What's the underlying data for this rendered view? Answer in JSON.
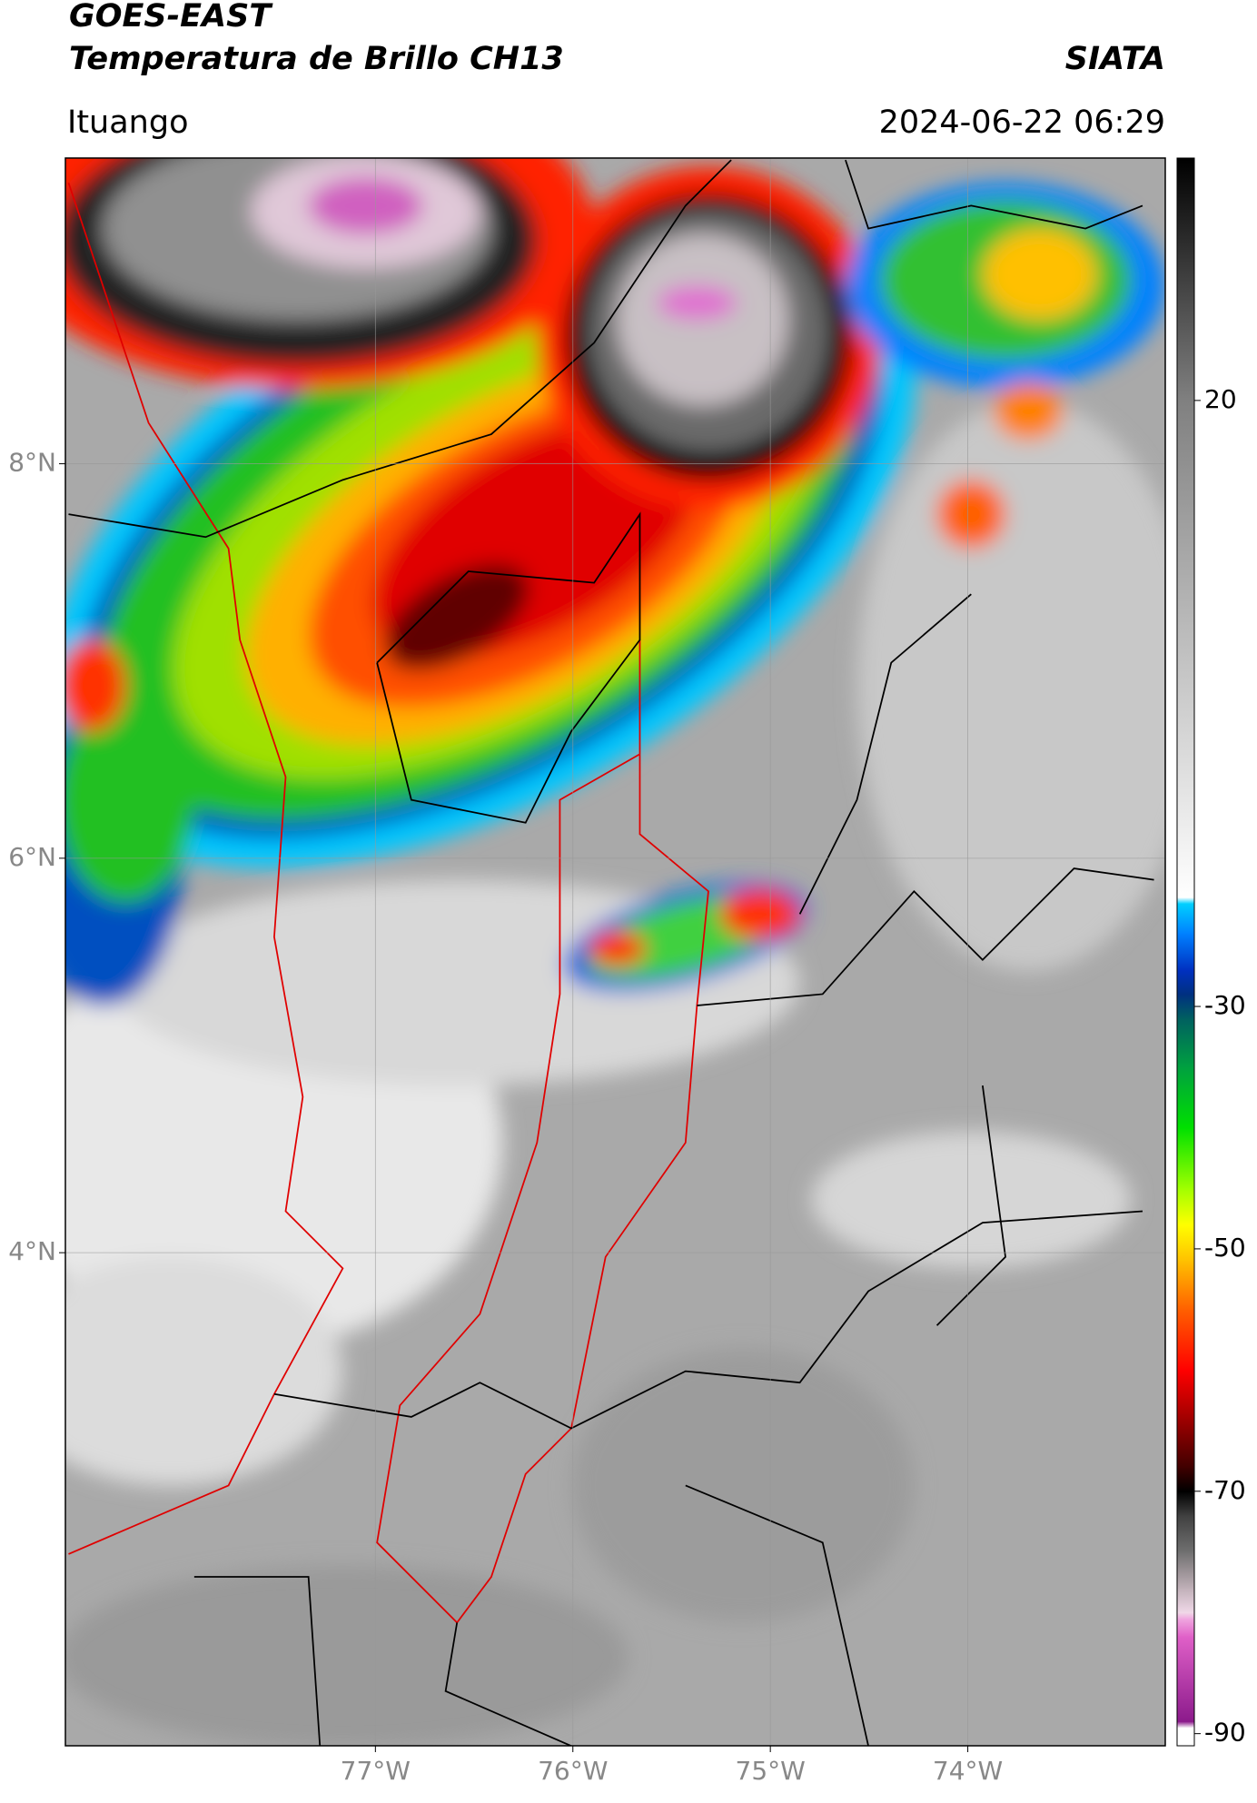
{
  "header": {
    "title": "GOES-EAST",
    "subtitle": "Temperatura de Brillo CH13",
    "brand": "SIATA",
    "location": "Ituango",
    "timestamp": "2024-06-22 06:29"
  },
  "map": {
    "xlim": [
      -78.57,
      -73.0
    ],
    "ylim": [
      1.5,
      9.55
    ],
    "xticks": [
      {
        "value": -77,
        "label": "77°W"
      },
      {
        "value": -76,
        "label": "76°W"
      },
      {
        "value": -75,
        "label": "75°W"
      },
      {
        "value": -74,
        "label": "74°W"
      }
    ],
    "yticks": [
      {
        "value": 4,
        "label": "4°N"
      },
      {
        "value": 6,
        "label": "6°N"
      },
      {
        "value": 8,
        "label": "8°N"
      }
    ],
    "grid": true
  },
  "colorbar": {
    "lim": [
      -91,
      40
    ],
    "ticks": [
      -90,
      -70,
      -50,
      -30,
      20
    ],
    "colormap": [
      {
        "value": -91,
        "color": "#ffffff"
      },
      {
        "value": -89.5,
        "color": "#ffffff"
      },
      {
        "value": -89,
        "color": "#8b1a8b"
      },
      {
        "value": -82,
        "color": "#e060c8"
      },
      {
        "value": -80.5,
        "color": "#f0a8e0"
      },
      {
        "value": -80,
        "color": "#f0d8e8"
      },
      {
        "value": -78,
        "color": "#c0b0b8"
      },
      {
        "value": -75,
        "color": "#707070"
      },
      {
        "value": -72,
        "color": "#404040"
      },
      {
        "value": -70,
        "color": "#000000"
      },
      {
        "value": -68,
        "color": "#400000"
      },
      {
        "value": -64,
        "color": "#a00000"
      },
      {
        "value": -60,
        "color": "#ff0000"
      },
      {
        "value": -55,
        "color": "#ff6000"
      },
      {
        "value": -51,
        "color": "#ffc000"
      },
      {
        "value": -48,
        "color": "#ffff00"
      },
      {
        "value": -45,
        "color": "#a0ff00"
      },
      {
        "value": -40,
        "color": "#00e000"
      },
      {
        "value": -35,
        "color": "#00a040"
      },
      {
        "value": -31,
        "color": "#006060"
      },
      {
        "value": -29,
        "color": "#003080"
      },
      {
        "value": -27,
        "color": "#0030c0"
      },
      {
        "value": -24,
        "color": "#0080ff"
      },
      {
        "value": -21.5,
        "color": "#00d0ff"
      },
      {
        "value": -21,
        "color": "#ffffff"
      },
      {
        "value": 20,
        "color": "#808080"
      },
      {
        "value": 40,
        "color": "#000000"
      }
    ]
  }
}
